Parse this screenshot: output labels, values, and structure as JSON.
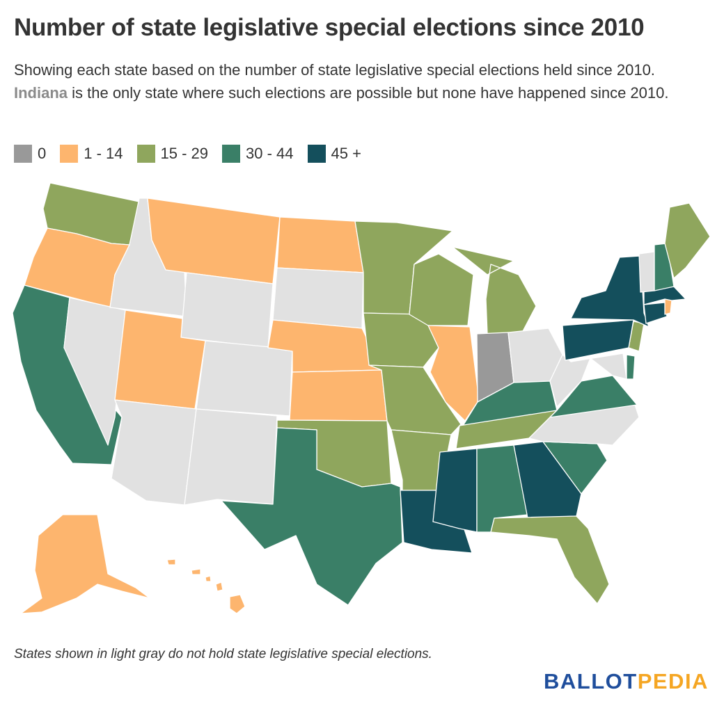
{
  "title": "Number of state legislative special elections since 2010",
  "subtitle": {
    "part1": "Showing each state based on the number of state legislative special elections held since 2010. ",
    "highlight": "Indiana",
    "part2": " is the only state where such elections are possible but none have happened since 2010."
  },
  "legend": [
    {
      "label": "0",
      "color": "#999999"
    },
    {
      "label": "1 - 14",
      "color": "#fdb56e"
    },
    {
      "label": "15 - 29",
      "color": "#8fa65d"
    },
    {
      "label": "30 - 44",
      "color": "#3a7f67"
    },
    {
      "label": "45 +",
      "color": "#144f5c"
    }
  ],
  "no_elections_color": "#e1e1e1",
  "states": {
    "WA": "15-29",
    "OR": "1-14",
    "CA": "30-44",
    "NV": "none",
    "ID": "none",
    "MT": "1-14",
    "WY": "none",
    "UT": "1-14",
    "AZ": "none",
    "CO": "none",
    "NM": "none",
    "ND": "1-14",
    "SD": "none",
    "NE": "1-14",
    "KS": "1-14",
    "OK": "15-29",
    "TX": "30-44",
    "MN": "15-29",
    "IA": "15-29",
    "MO": "15-29",
    "AR": "15-29",
    "LA": "45+",
    "WI": "15-29",
    "IL": "1-14",
    "MI": "15-29",
    "IN": "0",
    "OH": "none",
    "KY": "30-44",
    "TN": "15-29",
    "MS": "45+",
    "AL": "30-44",
    "GA": "45+",
    "FL": "15-29",
    "SC": "30-44",
    "NC": "none",
    "VA": "30-44",
    "WV": "none",
    "MD": "none",
    "DE": "30-44",
    "NJ": "15-29",
    "PA": "45+",
    "NY": "45+",
    "CT": "45+",
    "RI": "1-14",
    "MA": "45+",
    "VT": "none",
    "NH": "30-44",
    "ME": "15-29",
    "AK": "1-14",
    "HI": "1-14"
  },
  "footnote": "States shown in light gray do not hold state legislative special elections.",
  "logo": {
    "part1": "BALLOT",
    "part2": "PEDIA"
  }
}
